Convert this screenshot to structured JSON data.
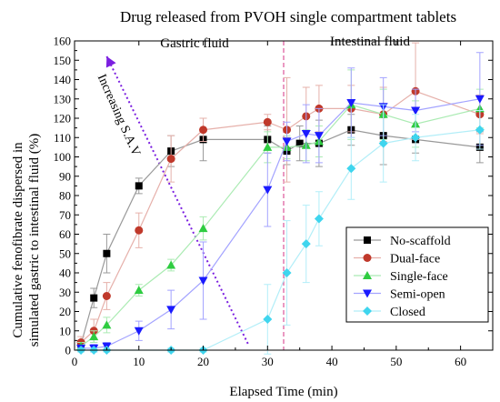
{
  "chart_data": {
    "type": "line",
    "title": "Drug released from PVOH single compartment tablets",
    "xlabel": "Elapsed Time (min)",
    "ylabel_lines": [
      "Cumulative fenofibrate dispersed in",
      "simulated gastric to intestinal fluid (%)"
    ],
    "xlim": [
      0,
      65
    ],
    "ylim": [
      0,
      160
    ],
    "xticks": [
      0,
      10,
      20,
      30,
      40,
      50,
      60
    ],
    "yticks": [
      0,
      10,
      20,
      30,
      40,
      50,
      60,
      70,
      80,
      90,
      100,
      110,
      120,
      130,
      140,
      150,
      160
    ],
    "grid": false,
    "legend_position": "bottom-right",
    "divider_x": 32.5,
    "region_labels": {
      "gastric": "Gastric fluid",
      "intestinal": "Intestinal fluid"
    },
    "annotation": {
      "text": "Increasing S.A.V",
      "from": [
        5,
        152
      ],
      "to": [
        27,
        3
      ]
    },
    "series": [
      {
        "name": "No-scaffold",
        "color": "#000000",
        "marker": "square",
        "x": [
          1,
          3,
          5,
          10,
          15,
          20,
          30,
          33,
          35,
          38,
          43,
          48,
          53,
          63
        ],
        "y": [
          3,
          27,
          50,
          85,
          103,
          109,
          109,
          103,
          107,
          107,
          114,
          111,
          109,
          105
        ],
        "err": [
          2,
          5,
          10,
          4,
          8,
          11,
          7,
          7,
          9,
          12,
          8,
          15,
          7,
          8
        ]
      },
      {
        "name": "Dual-face",
        "color": "#c0392b",
        "marker": "circle",
        "x": [
          1,
          3,
          5,
          10,
          15,
          20,
          30,
          33,
          36,
          38,
          43,
          48,
          53,
          63
        ],
        "y": [
          4,
          10,
          28,
          62,
          99,
          114,
          118,
          114,
          121,
          125,
          125,
          122,
          134,
          122
        ],
        "err": [
          3,
          6,
          7,
          9,
          12,
          6,
          4,
          27,
          15,
          12,
          12,
          14,
          25,
          10
        ]
      },
      {
        "name": "Single-face",
        "color": "#2ecc40",
        "marker": "triangle-up",
        "x": [
          1,
          3,
          5,
          10,
          15,
          20,
          30,
          33,
          36,
          38,
          43,
          48,
          53,
          63
        ],
        "y": [
          2,
          7,
          13,
          31,
          44,
          63,
          105,
          105,
          106,
          108,
          127,
          122,
          117,
          125
        ],
        "err": [
          2,
          3,
          4,
          3,
          3,
          6,
          8,
          6,
          8,
          8,
          18,
          13,
          12,
          10
        ]
      },
      {
        "name": "Semi-open",
        "color": "#1a1aff",
        "marker": "triangle-down",
        "x": [
          1,
          3,
          5,
          10,
          15,
          20,
          30,
          33,
          36,
          38,
          43,
          48,
          53,
          63
        ],
        "y": [
          1,
          1,
          2,
          10,
          21,
          36,
          83,
          108,
          112,
          111,
          128,
          126,
          124,
          130
        ],
        "err": [
          1,
          2,
          2,
          5,
          10,
          20,
          19,
          10,
          15,
          14,
          18,
          15,
          11,
          24
        ]
      },
      {
        "name": "Closed",
        "color": "#3fd5ee",
        "marker": "diamond",
        "x": [
          1,
          3,
          5,
          15,
          20,
          30,
          33,
          36,
          38,
          43,
          48,
          53,
          63
        ],
        "y": [
          0,
          0,
          0,
          0,
          0,
          16,
          40,
          55,
          68,
          94,
          107,
          110,
          114
        ],
        "err": [
          1,
          1,
          1,
          1,
          1,
          18,
          27,
          20,
          14,
          16,
          20,
          12,
          10
        ]
      }
    ]
  }
}
